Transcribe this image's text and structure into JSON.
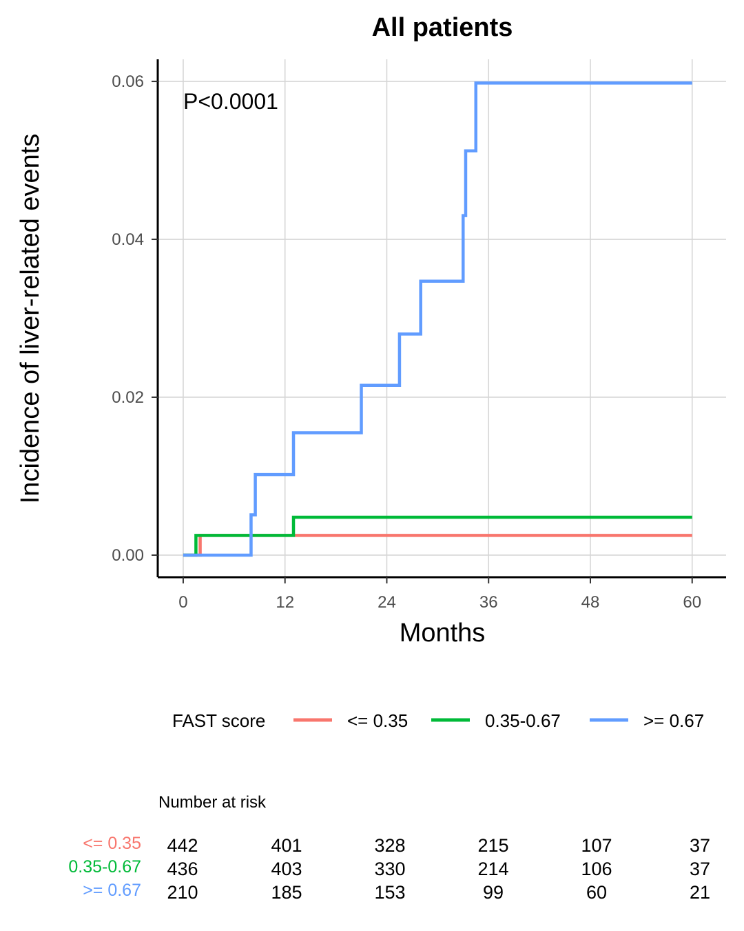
{
  "chart_data": {
    "type": "line",
    "title": "All patients",
    "xlabel": "Months",
    "ylabel": "Incidence of liver-related events",
    "annotation": "P<0.0001",
    "xlim": [
      -3,
      64
    ],
    "ylim": [
      -0.0028,
      0.0628
    ],
    "x_ticks": [
      0,
      12,
      24,
      36,
      48,
      60
    ],
    "y_ticks": [
      0.0,
      0.02,
      0.04,
      0.06
    ],
    "y_tick_labels": [
      "0.00",
      "0.02",
      "0.04",
      "0.06"
    ],
    "grid": true,
    "legend": {
      "title": "FAST score",
      "position": "bottom",
      "entries": [
        "<= 0.35",
        "0.35-0.67",
        ">= 0.67"
      ]
    },
    "series": [
      {
        "name": "<= 0.35",
        "color": "#f8766d",
        "step": true,
        "x": [
          0,
          2,
          60
        ],
        "y": [
          0.0,
          0.0025,
          0.0025
        ]
      },
      {
        "name": "0.35-0.67",
        "color": "#00ba38",
        "step": true,
        "x": [
          0,
          1.5,
          13,
          60
        ],
        "y": [
          0.0,
          0.0025,
          0.0048,
          0.0048
        ]
      },
      {
        "name": ">= 0.67",
        "color": "#619cff",
        "step": true,
        "x": [
          0,
          8,
          8.5,
          13,
          21,
          25.5,
          28,
          33,
          33.3,
          34.5,
          60
        ],
        "y": [
          0.0,
          0.0051,
          0.0102,
          0.0155,
          0.0215,
          0.028,
          0.0347,
          0.043,
          0.0512,
          0.0598,
          0.0598
        ]
      }
    ],
    "risk_table": {
      "title": "Number at risk",
      "times": [
        0,
        12,
        24,
        36,
        48,
        60
      ],
      "rows": [
        {
          "label": "<= 0.35",
          "color": "#f8766d",
          "values": [
            "442",
            "401",
            "328",
            "215",
            "107",
            "37"
          ]
        },
        {
          "label": "0.35-0.67",
          "color": "#00ba38",
          "values": [
            "436",
            "403",
            "330",
            "214",
            "106",
            "37"
          ]
        },
        {
          "label": ">= 0.67",
          "color": "#619cff",
          "values": [
            "210",
            "185",
            "153",
            "99",
            "60",
            "21"
          ]
        }
      ]
    }
  }
}
